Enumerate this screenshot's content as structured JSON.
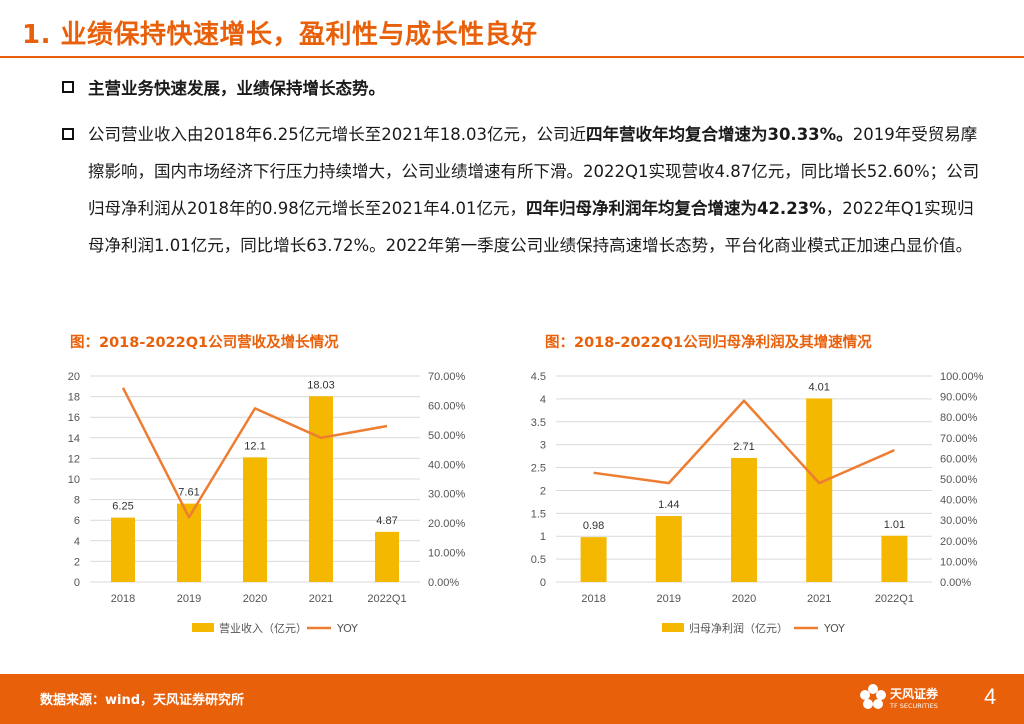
{
  "slide": {
    "title": "1. 业绩保持快速增长，盈利性与成长性良好"
  },
  "bullets": {
    "b1": "主营业务快速发展，业绩保持增长态势。",
    "b2": {
      "t1": "公司营业收入由2018年6.25亿元增长至2021年18.03亿元，公司近",
      "t2": "四年营收年均复合增速为30.33%。",
      "t3": "2019年受贸易摩擦影响，国内市场经济下行压力持续增大，公司业绩增速有所下滑。2022Q1实现营收4.87亿元，同比增长52.60%；公司归母净利润从2018年的0.98亿元增长至2021年4.01亿元，",
      "t4": "四年归母净利润年均复合增速为42.23%",
      "t5": "，2022年Q1实现归母净利润1.01亿元，同比增长63.72%。2022年第一季度公司业绩保持高速增长态势，平台化商业模式正加速凸显价值。"
    }
  },
  "chart_data": [
    {
      "type": "bar",
      "title": "图：2018-2022Q1公司营收及增长情况",
      "categories": [
        "2018",
        "2019",
        "2020",
        "2021",
        "2022Q1"
      ],
      "series": [
        {
          "name": "营业收入（亿元）",
          "kind": "bar",
          "axis": "left",
          "values": [
            6.25,
            7.61,
            12.1,
            18.03,
            4.87
          ]
        },
        {
          "name": "YOY",
          "kind": "line",
          "axis": "right",
          "values": [
            66,
            22,
            59,
            49,
            53
          ]
        }
      ],
      "left_axis": {
        "min": 0,
        "max": 20,
        "step": 2,
        "ticks": [
          "0",
          "2",
          "4",
          "6",
          "8",
          "10",
          "12",
          "14",
          "16",
          "18",
          "20"
        ]
      },
      "right_axis": {
        "min": 0,
        "max": 70,
        "step": 10,
        "ticks": [
          "0.00%",
          "10.00%",
          "20.00%",
          "30.00%",
          "40.00%",
          "50.00%",
          "60.00%",
          "70.00%"
        ]
      },
      "data_labels": [
        "6.25",
        "7.61",
        "12.1",
        "18.03",
        "4.87"
      ],
      "legend": [
        "营业收入（亿元）",
        "YOY"
      ],
      "legend_position": "bottom"
    },
    {
      "type": "bar",
      "title": "图：2018-2022Q1公司归母净利润及其增速情况",
      "categories": [
        "2018",
        "2019",
        "2020",
        "2021",
        "2022Q1"
      ],
      "series": [
        {
          "name": "归母净利润（亿元）",
          "kind": "bar",
          "axis": "left",
          "values": [
            0.98,
            1.44,
            2.71,
            4.01,
            1.01
          ]
        },
        {
          "name": "YOY",
          "kind": "line",
          "axis": "right",
          "values": [
            53,
            48,
            88,
            48,
            64
          ]
        }
      ],
      "left_axis": {
        "min": 0,
        "max": 4.5,
        "step": 0.5,
        "ticks": [
          "0",
          "0.5",
          "1",
          "1.5",
          "2",
          "2.5",
          "3",
          "3.5",
          "4",
          "4.5"
        ]
      },
      "right_axis": {
        "min": 0,
        "max": 100,
        "step": 10,
        "ticks": [
          "0.00%",
          "10.00%",
          "20.00%",
          "30.00%",
          "40.00%",
          "50.00%",
          "60.00%",
          "70.00%",
          "80.00%",
          "90.00%",
          "100.00%"
        ]
      },
      "data_labels": [
        "0.98",
        "1.44",
        "2.71",
        "4.01",
        "1.01"
      ],
      "legend": [
        "归母净利润（亿元）",
        "YOY"
      ],
      "legend_position": "bottom"
    }
  ],
  "colors": {
    "accent": "#E8600A",
    "bar": "#F5B800",
    "line": "#ED7D31",
    "grid": "#d9d9d9"
  },
  "footer": {
    "source": "数据来源：wind，天风证券研究所",
    "logo_name": "天风证券",
    "logo_sub": "TF SECURITIES",
    "page": "4"
  }
}
